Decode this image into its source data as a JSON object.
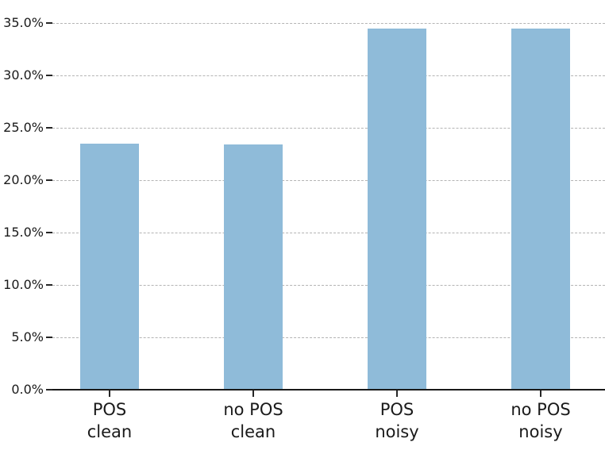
{
  "chart_data": {
    "type": "bar",
    "title": "",
    "xlabel": "",
    "ylabel": "",
    "categories": [
      "POS\nclean",
      "no POS\nclean",
      "POS\nnoisy",
      "no POS\nnoisy"
    ],
    "values": [
      23.5,
      23.4,
      34.5,
      34.5
    ],
    "value_unit": "percent",
    "ylim": [
      0,
      37
    ],
    "ytick_values": [
      0,
      5,
      10,
      15,
      20,
      25,
      30,
      35
    ],
    "ytick_labels": [
      "0.0%",
      "5.0%",
      "10.0%",
      "15.0%",
      "20.0%",
      "25.0%",
      "30.0%",
      "35.0%"
    ],
    "grid": "horizontal-dashed",
    "legend": "none",
    "colors": {
      "bar_fill": "#8fbbd9",
      "gridline": "#b4b4b4",
      "axis_line": "#1a1a1a",
      "tick_mark": "#262626",
      "tick_text": "#1a1a1a",
      "background": "#ffffff"
    }
  }
}
